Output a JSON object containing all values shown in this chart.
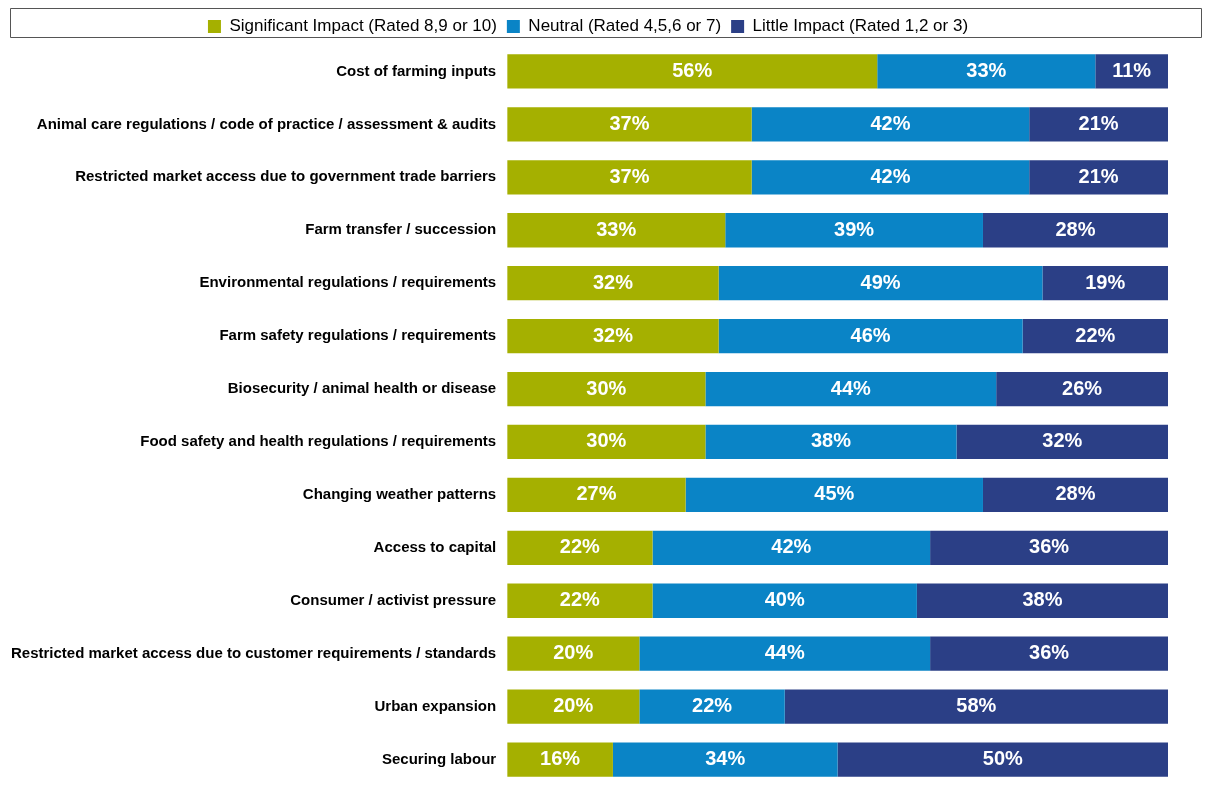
{
  "chart_data": {
    "type": "bar",
    "orientation": "horizontal",
    "stacked": true,
    "legend": "top",
    "tick_labels": "y",
    "grid": false,
    "xlim": [
      0,
      100
    ],
    "categories": [
      "Cost of farming inputs",
      "Animal care regulations / code of practice / assessment & audits",
      "Restricted market access due to government trade barriers",
      "Farm transfer / succession",
      "Environmental regulations / requirements",
      "Farm safety regulations / requirements",
      "Biosecurity / animal health or disease",
      "Food safety and health regulations / requirements",
      "Changing weather patterns",
      "Access to capital",
      "Consumer / activist pressure",
      "Restricted market access due to customer requirements / standards",
      "Urban expansion",
      "Securing labour"
    ],
    "series": [
      {
        "name": "Significant Impact (Rated 8,9 or 10)",
        "color": "#a5b000",
        "values": [
          56,
          37,
          37,
          33,
          32,
          32,
          30,
          30,
          27,
          22,
          22,
          20,
          20,
          16
        ],
        "value_labels": [
          "56%",
          "37%",
          "37%",
          "33%",
          "32%",
          "32%",
          "30%",
          "30%",
          "27%",
          "22%",
          "22%",
          "20%",
          "20%",
          "16%"
        ]
      },
      {
        "name": "Neutral (Rated 4,5,6 or 7)",
        "color": "#0a84c6",
        "values": [
          33,
          42,
          42,
          39,
          49,
          46,
          44,
          38,
          45,
          42,
          40,
          44,
          22,
          34
        ],
        "value_labels": [
          "33%",
          "42%",
          "42%",
          "39%",
          "49%",
          "46%",
          "44%",
          "38%",
          "45%",
          "42%",
          "40%",
          "44%",
          "22%",
          "34%"
        ]
      },
      {
        "name": "Little Impact (Rated 1,2 or 3)",
        "color": "#2b3f86",
        "values": [
          11,
          21,
          21,
          28,
          19,
          22,
          26,
          32,
          28,
          36,
          38,
          36,
          58,
          50
        ],
        "value_labels": [
          "11%",
          "21%",
          "21%",
          "28%",
          "19%",
          "22%",
          "26%",
          "32%",
          "28%",
          "36%",
          "38%",
          "36%",
          "58%",
          "50%"
        ]
      }
    ]
  }
}
